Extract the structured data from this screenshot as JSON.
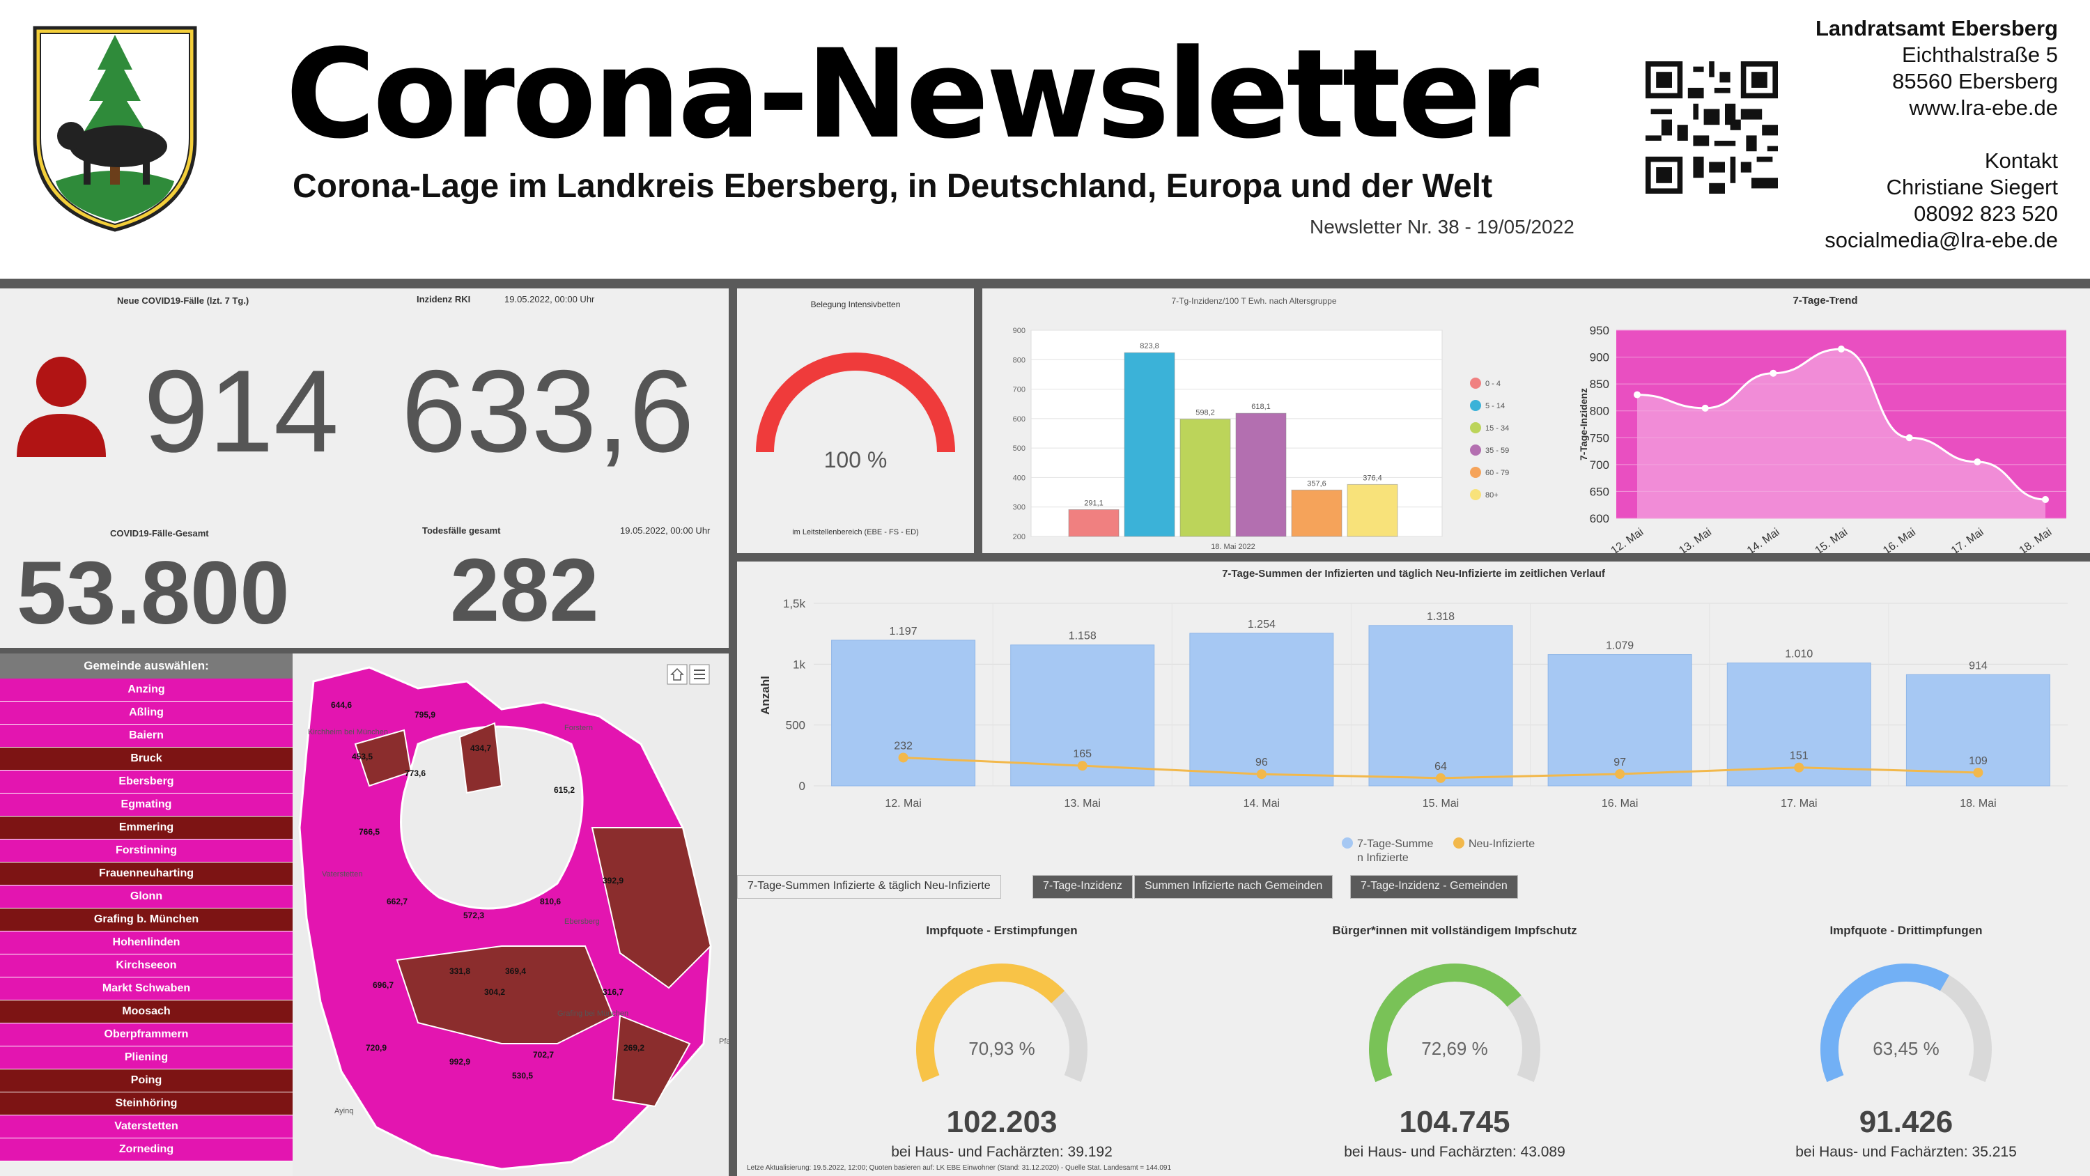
{
  "header": {
    "title": "Corona-Newsletter",
    "subtitle": "Corona-Lage im Landkreis Ebersberg, in Deutschland, Europa und der Welt",
    "issue": "Newsletter Nr. 38 - 19/05/2022"
  },
  "contact": {
    "org": "Landratsamt Ebersberg",
    "street": "Eichthalstraße 5",
    "city": "85560 Ebersberg",
    "web": "www.lra-ebe.de",
    "kontakt_label": "Kontakt",
    "person": "Christiane Siegert",
    "phone": "08092 823 520",
    "email": "socialmedia@lra-ebe.de"
  },
  "kpi": {
    "new_cases_label": "Neue COVID19-Fälle (lzt. 7 Tg.)",
    "new_cases": "914",
    "incidence_label": "Inzidenz RKI",
    "incidence_date": "19.05.2022, 00:00 Uhr",
    "incidence": "633,6",
    "total_label": "COVID19-Fälle-Gesamt",
    "total": "53.800",
    "deaths_label": "Todesfälle gesamt",
    "deaths_date": "19.05.2022, 00:00 Uhr",
    "deaths": "282"
  },
  "icu": {
    "title": "Belegung Intensivbetten",
    "value_label": "100 %",
    "fraction": 1.0,
    "footer": "im Leitstellenbereich (EBE - FS - ED)",
    "color": "#ef3b3b"
  },
  "chart_data": [
    {
      "type": "bar",
      "title": "7-Tg-Inzidenz/100 T Ewh. nach Altersgruppe",
      "xlabel": "18. Mai 2022",
      "categories": [
        "0 - 4",
        "5 - 14",
        "15 - 34",
        "35 - 59",
        "60 - 79",
        "80+"
      ],
      "values": [
        291.1,
        823.8,
        598.2,
        618.1,
        357.6,
        376.4
      ],
      "value_labels": [
        "291,1",
        "823,8",
        "598,2",
        "618,1",
        "357,6",
        "376,4"
      ],
      "colors": [
        "#f08080",
        "#3bb2d8",
        "#bcd45a",
        "#b36fb0",
        "#f5a35a",
        "#f8e27a"
      ],
      "ylim": [
        200,
        900
      ],
      "yticks": [
        200,
        300,
        400,
        500,
        600,
        700,
        800,
        900
      ],
      "legend": "right"
    },
    {
      "type": "area",
      "title": "7-Tage-Trend",
      "ylabel": "7-Tage-Inzidenz",
      "categories": [
        "12. Mai",
        "13. Mai",
        "14. Mai",
        "15. Mai",
        "16. Mai",
        "17. Mai",
        "18. Mai"
      ],
      "values": [
        830,
        805,
        870,
        915,
        750,
        705,
        635
      ],
      "ylim": [
        600,
        950
      ],
      "yticks": [
        600,
        650,
        700,
        750,
        800,
        850,
        900,
        950
      ],
      "color": "#e94fc1"
    },
    {
      "type": "bar",
      "title": "7-Tage-Summen der Infizierten und täglich Neu-Infizierte im zeitlichen Verlauf",
      "ylabel": "Anzahl",
      "categories": [
        "12. Mai",
        "13. Mai",
        "14. Mai",
        "15. Mai",
        "16. Mai",
        "17. Mai",
        "18. Mai"
      ],
      "ylim": [
        0,
        1500
      ],
      "yticks": [
        0,
        500,
        1000,
        1500
      ],
      "ytick_labels": [
        "0",
        "500",
        "1k",
        "1,5k"
      ],
      "series": [
        {
          "name": "7-Tage-Summe\nn Infizierte",
          "values": [
            1197,
            1158,
            1254,
            1318,
            1079,
            1010,
            914
          ],
          "labels": [
            "1.197",
            "1.158",
            "1.254",
            "1.318",
            "1.079",
            "1.010",
            "914"
          ],
          "color": "#a6c8f3"
        },
        {
          "name": "Neu-Infizierte",
          "values": [
            232,
            165,
            96,
            64,
            97,
            151,
            109
          ],
          "labels": [
            "232",
            "165",
            "96",
            "64",
            "97",
            "151",
            "109"
          ],
          "color": "#f2b84b"
        }
      ],
      "legend_a1": "7-Tage-Summe",
      "legend_a2": "n Infizierte",
      "legend_b": "Neu-Infizierte"
    }
  ],
  "tabs": [
    "7-Tage-Summen Infizierte & täglich Neu-Infizierte",
    "7-Tage-Inzidenz",
    "Summen Infizierte nach Gemeinden",
    "7-Tage-Inzidenz - Gemeinden"
  ],
  "municipalities": {
    "header": "Gemeinde auswählen:",
    "items": [
      {
        "name": "Anzing",
        "color": "#e315b0"
      },
      {
        "name": "Aßling",
        "color": "#e315b0"
      },
      {
        "name": "Baiern",
        "color": "#e315b0"
      },
      {
        "name": "Bruck",
        "color": "#7d1414"
      },
      {
        "name": "Ebersberg",
        "color": "#e315b0"
      },
      {
        "name": "Egmating",
        "color": "#e315b0"
      },
      {
        "name": "Emmering",
        "color": "#7d1414"
      },
      {
        "name": "Forstinning",
        "color": "#e315b0"
      },
      {
        "name": "Frauenneuharting",
        "color": "#7d1414"
      },
      {
        "name": "Glonn",
        "color": "#e315b0"
      },
      {
        "name": "Grafing b. München",
        "color": "#7d1414"
      },
      {
        "name": "Hohenlinden",
        "color": "#e315b0"
      },
      {
        "name": "Kirchseeon",
        "color": "#e315b0"
      },
      {
        "name": "Markt Schwaben",
        "color": "#e315b0"
      },
      {
        "name": "Moosach",
        "color": "#7d1414"
      },
      {
        "name": "Oberpframmern",
        "color": "#e315b0"
      },
      {
        "name": "Pliening",
        "color": "#e315b0"
      },
      {
        "name": "Poing",
        "color": "#7d1414"
      },
      {
        "name": "Steinhöring",
        "color": "#7d1414"
      },
      {
        "name": "Vaterstetten",
        "color": "#e315b0"
      },
      {
        "name": "Zorneding",
        "color": "#e315b0"
      }
    ]
  },
  "map": {
    "labels": [
      "644,6",
      "795,9",
      "434,7",
      "453,5",
      "773,6",
      "615,2",
      "766,5",
      "392,9",
      "662,7",
      "810,6",
      "572,3",
      "696,7",
      "331,8",
      "369,4",
      "304,2",
      "316,7",
      "720,9",
      "702,7",
      "269,2",
      "992,9",
      "530,5"
    ],
    "places": [
      "Forstern",
      "Kirchheim bei München",
      "Vaterstetten",
      "Ebersberg",
      "Grafing bei München",
      "Ayinq",
      "Pfa"
    ],
    "fill_high": "#e315b0",
    "fill_low": "#8b2d2d"
  },
  "vaccination": [
    {
      "title": "Impfquote  - Erstimpfungen",
      "pct": "70,93 %",
      "fraction": 0.7093,
      "total": "102.203",
      "sub": "bei Haus- und Fachärzten: 39.192",
      "color": "#f8c347"
    },
    {
      "title": "Bürger*innen mit vollständigem Impfschutz",
      "pct": "72,69 %",
      "fraction": 0.7269,
      "total": "104.745",
      "sub": "bei Haus- und Fachärzten: 43.089",
      "color": "#79c257"
    },
    {
      "title": "Impfquote  - Drittimpfungen",
      "pct": "63,45 %",
      "fraction": 0.6345,
      "total": "91.426",
      "sub": "bei Haus- und Fachärzten: 35.215",
      "color": "#72b0f5"
    }
  ],
  "footnote": "Letze Aktualisierung: 19.5.2022, 12:00; Quoten basieren auf: LK EBE Einwohner (Stand: 31.12.2020) - Quelle Stat. Landesamt = 144.091"
}
